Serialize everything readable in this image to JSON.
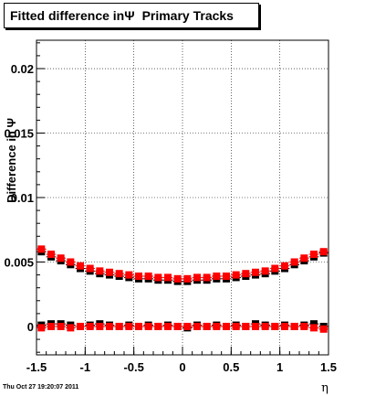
{
  "chart_data": {
    "type": "scatter",
    "title": "Fitted difference inΨ",
    "subtitle": "Primary Tracks",
    "xlabel": "η",
    "ylabel": "Difference in Ψ",
    "xlim": [
      -1.5,
      1.5
    ],
    "ylim": [
      -0.0022,
      0.0222
    ],
    "x_ticks": [
      "-1.5",
      "-1",
      "-0.5",
      "0",
      "0.5",
      "1",
      "1.5"
    ],
    "y_ticks": [
      "0",
      "0.005",
      "0.01",
      "0.015",
      "0.02"
    ],
    "grid": true,
    "legend": "none",
    "series": [
      {
        "color": "#000000",
        "x": [
          -1.45,
          -1.35,
          -1.25,
          -1.15,
          -1.05,
          -0.95,
          -0.85,
          -0.75,
          -0.65,
          -0.55,
          -0.45,
          -0.35,
          -0.25,
          -0.15,
          -0.05,
          0.05,
          0.15,
          0.25,
          0.35,
          0.45,
          0.55,
          0.65,
          0.75,
          0.85,
          0.95,
          1.05,
          1.15,
          1.25,
          1.35,
          1.45
        ],
        "y": [
          0.0058,
          0.0054,
          0.0051,
          0.0048,
          0.0045,
          0.0043,
          0.0041,
          0.004,
          0.0039,
          0.0038,
          0.0037,
          0.0037,
          0.0036,
          0.0036,
          0.0035,
          0.0035,
          0.0036,
          0.0036,
          0.0037,
          0.0037,
          0.0038,
          0.0039,
          0.004,
          0.0041,
          0.0043,
          0.0045,
          0.0048,
          0.0051,
          0.0054,
          0.0057
        ]
      },
      {
        "color": "#ff0000",
        "x": [
          -1.45,
          -1.35,
          -1.25,
          -1.15,
          -1.05,
          -0.95,
          -0.85,
          -0.75,
          -0.65,
          -0.55,
          -0.45,
          -0.35,
          -0.25,
          -0.15,
          -0.05,
          0.05,
          0.15,
          0.25,
          0.35,
          0.45,
          0.55,
          0.65,
          0.75,
          0.85,
          0.95,
          1.05,
          1.15,
          1.25,
          1.35,
          1.45
        ],
        "y": [
          0.006,
          0.0056,
          0.0053,
          0.005,
          0.0047,
          0.0045,
          0.0043,
          0.0042,
          0.0041,
          0.004,
          0.0039,
          0.0039,
          0.0038,
          0.0038,
          0.0037,
          0.0037,
          0.0038,
          0.0038,
          0.0039,
          0.0039,
          0.004,
          0.0041,
          0.0042,
          0.0043,
          0.0045,
          0.0047,
          0.005,
          0.0053,
          0.0056,
          0.0058
        ]
      },
      {
        "color": "#000000",
        "x": [
          -1.45,
          -1.35,
          -1.25,
          -1.15,
          -1.05,
          -0.95,
          -0.85,
          -0.75,
          -0.65,
          -0.55,
          -0.45,
          -0.35,
          -0.25,
          -0.15,
          -0.05,
          0.05,
          0.15,
          0.25,
          0.35,
          0.45,
          0.55,
          0.65,
          0.75,
          0.85,
          0.95,
          1.05,
          1.15,
          1.25,
          1.35,
          1.45
        ],
        "y": [
          0.0001,
          0.0002,
          0.0002,
          0.0001,
          0.0,
          0.0001,
          0.0002,
          0.0001,
          0.0,
          0.0001,
          0.0,
          0.0001,
          0.0,
          0.0001,
          0.0,
          -0.0001,
          0.0001,
          0.0,
          0.0001,
          0.0,
          0.0001,
          0.0,
          0.0002,
          0.0001,
          0.0,
          0.0001,
          0.0,
          0.0001,
          0.0002,
          0.0
        ]
      },
      {
        "color": "#ff0000",
        "x": [
          -1.45,
          -1.35,
          -1.25,
          -1.15,
          -1.05,
          -0.95,
          -0.85,
          -0.75,
          -0.65,
          -0.55,
          -0.45,
          -0.35,
          -0.25,
          -0.15,
          -0.05,
          0.05,
          0.15,
          0.25,
          0.35,
          0.45,
          0.55,
          0.65,
          0.75,
          0.85,
          0.95,
          1.05,
          1.15,
          1.25,
          1.35,
          1.45
        ],
        "y": [
          -0.0001,
          0.0,
          0.0,
          -0.0001,
          0.0,
          0.0,
          0.0,
          0.0,
          0.0,
          0.0,
          0.0,
          0.0,
          0.0,
          0.0,
          0.0,
          0.0,
          0.0,
          0.0,
          0.0,
          0.0,
          0.0,
          0.0,
          0.0,
          0.0,
          0.0,
          0.0,
          0.0,
          0.0,
          -0.0001,
          -0.0002
        ]
      }
    ]
  },
  "footer": {
    "timestamp": "Thu Oct 27 19:20:07 2011"
  }
}
